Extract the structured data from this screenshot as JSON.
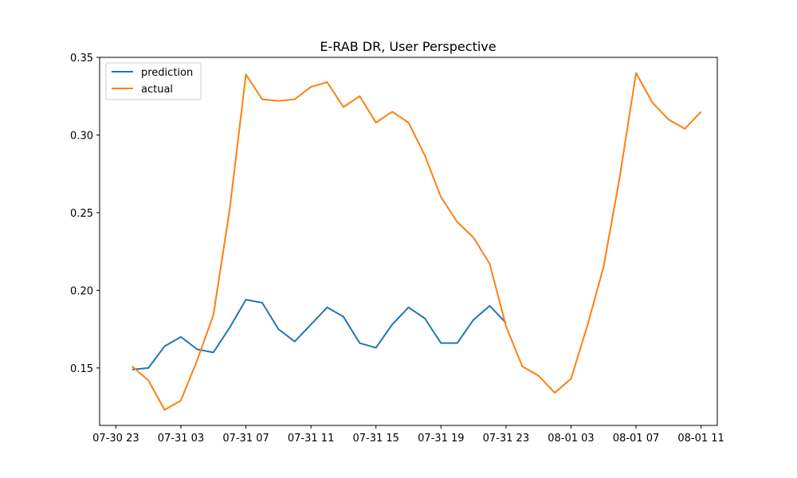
{
  "chart_data": {
    "type": "line",
    "title": "E-RAB DR, User Perspective",
    "xlabel": "",
    "ylabel": "",
    "x_unit": "datetime",
    "xlim": [
      "2024-07-30 22:00",
      "2024-08-01 12:00"
    ],
    "ylim": [
      0.113,
      0.35
    ],
    "x_tick_labels": [
      "07-30 23",
      "07-31 03",
      "07-31 07",
      "07-31 11",
      "07-31 15",
      "07-31 19",
      "07-31 23",
      "08-01 03",
      "08-01 07",
      "08-01 11"
    ],
    "y_tick_labels": [
      "0.15",
      "0.20",
      "0.25",
      "0.30",
      "0.35"
    ],
    "legend_position": "upper-left",
    "grid": false,
    "series": [
      {
        "name": "prediction",
        "color": "#1f77b4",
        "x": [
          "2024-07-31 00:00",
          "2024-07-31 01:00",
          "2024-07-31 02:00",
          "2024-07-31 03:00",
          "2024-07-31 04:00",
          "2024-07-31 05:00",
          "2024-07-31 06:00",
          "2024-07-31 07:00",
          "2024-07-31 08:00",
          "2024-07-31 09:00",
          "2024-07-31 10:00",
          "2024-07-31 11:00",
          "2024-07-31 12:00",
          "2024-07-31 13:00",
          "2024-07-31 14:00",
          "2024-07-31 15:00",
          "2024-07-31 16:00",
          "2024-07-31 17:00",
          "2024-07-31 18:00",
          "2024-07-31 19:00",
          "2024-07-31 20:00",
          "2024-07-31 21:00",
          "2024-07-31 22:00",
          "2024-07-31 23:00"
        ],
        "values": [
          0.149,
          0.15,
          0.164,
          0.17,
          0.162,
          0.16,
          0.176,
          0.194,
          0.192,
          0.175,
          0.167,
          0.178,
          0.189,
          0.183,
          0.166,
          0.163,
          0.178,
          0.189,
          0.182,
          0.166,
          0.166,
          0.181,
          0.19,
          0.179
        ]
      },
      {
        "name": "actual",
        "color": "#ff7f0e",
        "x": [
          "2024-07-31 00:00",
          "2024-07-31 01:00",
          "2024-07-31 02:00",
          "2024-07-31 03:00",
          "2024-07-31 04:00",
          "2024-07-31 05:00",
          "2024-07-31 06:00",
          "2024-07-31 07:00",
          "2024-07-31 08:00",
          "2024-07-31 09:00",
          "2024-07-31 10:00",
          "2024-07-31 11:00",
          "2024-07-31 12:00",
          "2024-07-31 13:00",
          "2024-07-31 14:00",
          "2024-07-31 15:00",
          "2024-07-31 16:00",
          "2024-07-31 17:00",
          "2024-07-31 18:00",
          "2024-07-31 19:00",
          "2024-07-31 20:00",
          "2024-07-31 21:00",
          "2024-07-31 22:00",
          "2024-07-31 23:00",
          "2024-08-01 00:00",
          "2024-08-01 01:00",
          "2024-08-01 02:00",
          "2024-08-01 03:00",
          "2024-08-01 04:00",
          "2024-08-01 05:00",
          "2024-08-01 06:00",
          "2024-08-01 07:00",
          "2024-08-01 08:00",
          "2024-08-01 09:00",
          "2024-08-01 10:00",
          "2024-08-01 11:00"
        ],
        "values": [
          0.151,
          0.142,
          0.123,
          0.129,
          0.155,
          0.184,
          0.252,
          0.339,
          0.323,
          0.322,
          0.323,
          0.331,
          0.334,
          0.318,
          0.325,
          0.308,
          0.315,
          0.308,
          0.287,
          0.26,
          0.244,
          0.234,
          0.217,
          0.177,
          0.151,
          0.145,
          0.134,
          0.143,
          0.177,
          0.215,
          0.273,
          0.34,
          0.321,
          0.31,
          0.304,
          0.315
        ]
      }
    ]
  }
}
